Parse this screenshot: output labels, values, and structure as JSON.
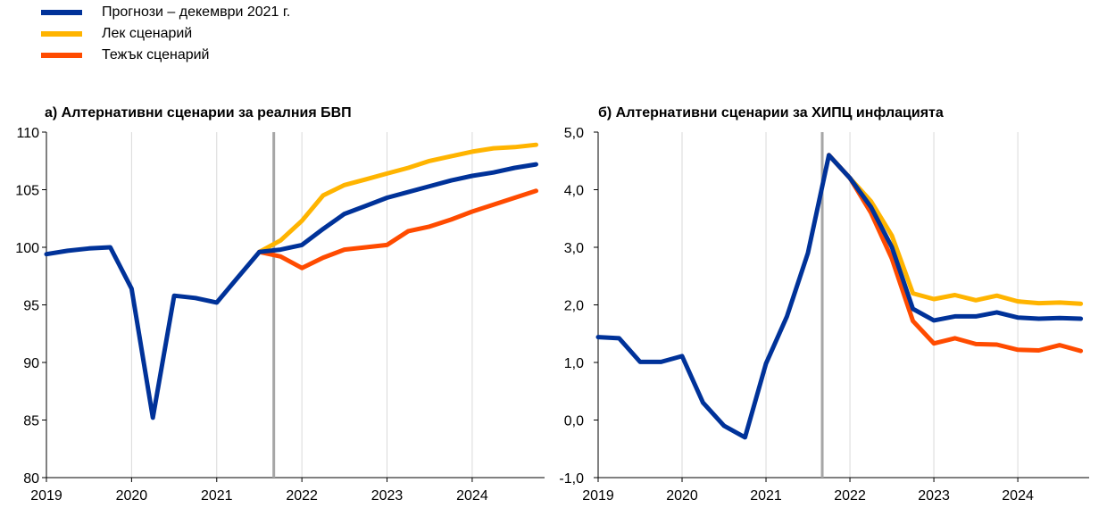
{
  "legend": [
    {
      "label": "Прогнози – декември 2021 г.",
      "color": "#003299"
    },
    {
      "label": "Лек сценарий",
      "color": "#FFB400"
    },
    {
      "label": "Тежък сценарий",
      "color": "#FF4B00"
    }
  ],
  "chart_data": [
    {
      "type": "line",
      "title": "а) Алтернативни сценарии за реалния БВП",
      "xlabel": "",
      "ylabel": "",
      "xlim": [
        2019.0,
        2024.85
      ],
      "ylim": [
        80,
        110
      ],
      "yticks": [
        80,
        85,
        90,
        95,
        100,
        105,
        110
      ],
      "ytick_labels": [
        "80",
        "85",
        "90",
        "95",
        "100",
        "105",
        "110"
      ],
      "xticks": [
        2019,
        2020,
        2021,
        2022,
        2023,
        2024
      ],
      "xtick_labels": [
        "2019",
        "2020",
        "2021",
        "2022",
        "2023",
        "2024"
      ],
      "vline": 2021.67,
      "grid": "vertical",
      "series": [
        {
          "name": "Лек сценарий",
          "color": "#FFB400",
          "x": [
            2021.5,
            2021.75,
            2022.0,
            2022.25,
            2022.5,
            2022.75,
            2023.0,
            2023.25,
            2023.5,
            2023.75,
            2024.0,
            2024.25,
            2024.5,
            2024.75
          ],
          "y": [
            99.6,
            100.6,
            102.3,
            104.5,
            105.4,
            105.9,
            106.4,
            106.9,
            107.5,
            107.9,
            108.3,
            108.6,
            108.7,
            108.9
          ]
        },
        {
          "name": "Тежък сценарий",
          "color": "#FF4B00",
          "x": [
            2021.5,
            2021.75,
            2022.0,
            2022.25,
            2022.5,
            2022.75,
            2023.0,
            2023.25,
            2023.5,
            2023.75,
            2024.0,
            2024.25,
            2024.5,
            2024.75
          ],
          "y": [
            99.6,
            99.2,
            98.2,
            99.1,
            99.8,
            100.0,
            100.2,
            101.4,
            101.8,
            102.4,
            103.1,
            103.7,
            104.3,
            104.9
          ]
        },
        {
          "name": "Прогнози – декември 2021 г.",
          "color": "#003299",
          "x": [
            2019.0,
            2019.25,
            2019.5,
            2019.75,
            2020.0,
            2020.25,
            2020.5,
            2020.75,
            2021.0,
            2021.25,
            2021.5,
            2021.75,
            2022.0,
            2022.25,
            2022.5,
            2022.75,
            2023.0,
            2023.25,
            2023.5,
            2023.75,
            2024.0,
            2024.25,
            2024.5,
            2024.75
          ],
          "y": [
            99.4,
            99.7,
            99.9,
            100.0,
            96.4,
            85.2,
            95.8,
            95.6,
            95.2,
            97.4,
            99.6,
            99.8,
            100.2,
            101.6,
            102.9,
            103.6,
            104.3,
            104.8,
            105.3,
            105.8,
            106.2,
            106.5,
            106.9,
            107.2
          ]
        }
      ]
    },
    {
      "type": "line",
      "title": "б) Алтернативни сценарии за ХИПЦ инфлацията",
      "xlabel": "",
      "ylabel": "",
      "xlim": [
        2019.0,
        2024.85
      ],
      "ylim": [
        -1.0,
        5.0
      ],
      "yticks": [
        -1.0,
        0.0,
        1.0,
        2.0,
        3.0,
        4.0,
        5.0
      ],
      "ytick_labels": [
        "-1,0",
        "0,0",
        "1,0",
        "2,0",
        "3,0",
        "4,0",
        "5,0"
      ],
      "xticks": [
        2019,
        2020,
        2021,
        2022,
        2023,
        2024
      ],
      "xtick_labels": [
        "2019",
        "2020",
        "2021",
        "2022",
        "2023",
        "2024"
      ],
      "vline": 2021.67,
      "grid": "vertical",
      "series": [
        {
          "name": "Лек сценарий",
          "color": "#FFB400",
          "x": [
            2021.75,
            2022.0,
            2022.25,
            2022.5,
            2022.75,
            2023.0,
            2023.25,
            2023.5,
            2023.75,
            2024.0,
            2024.25,
            2024.5,
            2024.75
          ],
          "y": [
            4.6,
            4.2,
            3.8,
            3.2,
            2.2,
            2.1,
            2.17,
            2.08,
            2.16,
            2.06,
            2.03,
            2.04,
            2.02
          ]
        },
        {
          "name": "Тежък сценарий",
          "color": "#FF4B00",
          "x": [
            2021.75,
            2022.0,
            2022.25,
            2022.5,
            2022.75,
            2023.0,
            2023.25,
            2023.5,
            2023.75,
            2024.0,
            2024.25,
            2024.5,
            2024.75
          ],
          "y": [
            4.6,
            4.2,
            3.6,
            2.8,
            1.72,
            1.33,
            1.42,
            1.32,
            1.31,
            1.22,
            1.21,
            1.3,
            1.2
          ]
        },
        {
          "name": "Прогнози – декември 2021 г.",
          "color": "#003299",
          "x": [
            2019.0,
            2019.25,
            2019.5,
            2019.75,
            2020.0,
            2020.25,
            2020.5,
            2020.75,
            2021.0,
            2021.25,
            2021.5,
            2021.75,
            2022.0,
            2022.25,
            2022.5,
            2022.75,
            2023.0,
            2023.25,
            2023.5,
            2023.75,
            2024.0,
            2024.25,
            2024.5,
            2024.75
          ],
          "y": [
            1.44,
            1.42,
            1.01,
            1.01,
            1.11,
            0.3,
            -0.1,
            -0.3,
            0.98,
            1.8,
            2.9,
            4.6,
            4.2,
            3.7,
            3.0,
            1.93,
            1.73,
            1.8,
            1.8,
            1.87,
            1.78,
            1.76,
            1.77,
            1.76
          ]
        }
      ]
    }
  ]
}
